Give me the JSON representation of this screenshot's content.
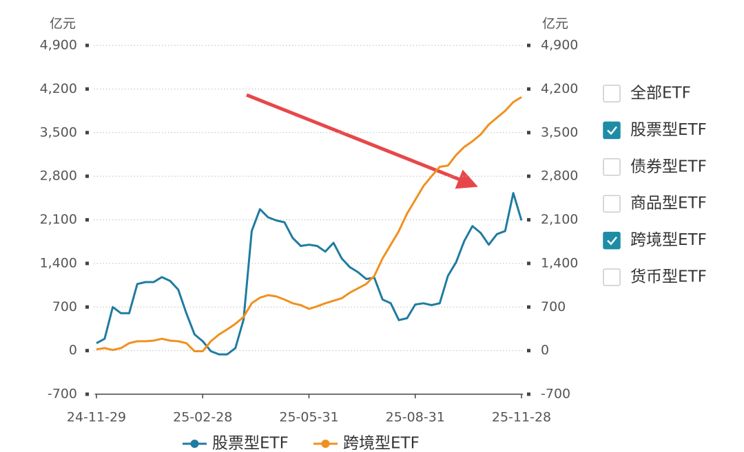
{
  "chart_data": {
    "type": "line",
    "y_unit": "亿元",
    "y2_unit": "亿元",
    "categories": [
      "24-11-29",
      null,
      null,
      null,
      null,
      null,
      null,
      null,
      null,
      null,
      null,
      null,
      null,
      "25-02-28",
      null,
      null,
      null,
      null,
      null,
      null,
      null,
      null,
      null,
      null,
      null,
      null,
      "25-05-31",
      null,
      null,
      null,
      null,
      null,
      null,
      null,
      null,
      null,
      null,
      null,
      null,
      "25-08-31",
      null,
      null,
      null,
      null,
      null,
      null,
      null,
      null,
      null,
      null,
      null,
      null,
      "25-11-28"
    ],
    "series": [
      {
        "name": "股票型ETF",
        "color": "#1f7ba0",
        "values": [
          120,
          190,
          700,
          600,
          600,
          1070,
          1100,
          1100,
          1180,
          1120,
          980,
          600,
          260,
          150,
          -10,
          -60,
          -60,
          40,
          500,
          1920,
          2270,
          2140,
          2090,
          2060,
          1810,
          1680,
          1700,
          1680,
          1590,
          1730,
          1480,
          1340,
          1260,
          1150,
          1170,
          820,
          760,
          490,
          520,
          740,
          760,
          730,
          760,
          1200,
          1420,
          1760,
          2000,
          1890,
          1700,
          1870,
          1920,
          2530,
          2090
        ]
      },
      {
        "name": "跨境型ETF",
        "color": "#f0901e",
        "values": [
          20,
          40,
          10,
          40,
          120,
          150,
          150,
          160,
          190,
          160,
          150,
          120,
          -10,
          -10,
          150,
          260,
          340,
          430,
          540,
          760,
          850,
          890,
          870,
          820,
          760,
          730,
          670,
          710,
          760,
          800,
          840,
          930,
          1000,
          1070,
          1200,
          1480,
          1700,
          1920,
          2200,
          2420,
          2640,
          2800,
          2950,
          2970,
          3140,
          3270,
          3360,
          3470,
          3630,
          3740,
          3850,
          3990,
          4070
        ]
      }
    ],
    "ylim": [
      -700,
      4900
    ],
    "yticks": [
      -700,
      0,
      700,
      {
        "value": 1400,
        "label": "1,400"
      },
      {
        "value": 2100,
        "label": "2,100"
      },
      {
        "value": 2800,
        "label": "2,800"
      },
      {
        "value": 3500,
        "label": "3,500"
      },
      {
        "value": 4200,
        "label": "4,200"
      },
      {
        "value": 4900,
        "label": "4,900"
      }
    ],
    "y2lim": [
      -700,
      4900
    ],
    "y2ticks": [
      -700,
      0,
      700,
      {
        "value": 1400,
        "label": "1,400"
      },
      {
        "value": 2100,
        "label": "2,100"
      },
      {
        "value": 2800,
        "label": "2,800"
      },
      {
        "value": 3500,
        "label": "3,500"
      },
      {
        "value": 4200,
        "label": "4,200"
      },
      {
        "value": 4900,
        "label": "4,900"
      }
    ],
    "grid": true
  },
  "filter_panel": {
    "items": [
      {
        "label": "全部ETF",
        "checked": false
      },
      {
        "label": "股票型ETF",
        "checked": true
      },
      {
        "label": "债券型ETF",
        "checked": false
      },
      {
        "label": "商品型ETF",
        "checked": false
      },
      {
        "label": "跨境型ETF",
        "checked": true
      },
      {
        "label": "货币型ETF",
        "checked": false
      }
    ]
  }
}
